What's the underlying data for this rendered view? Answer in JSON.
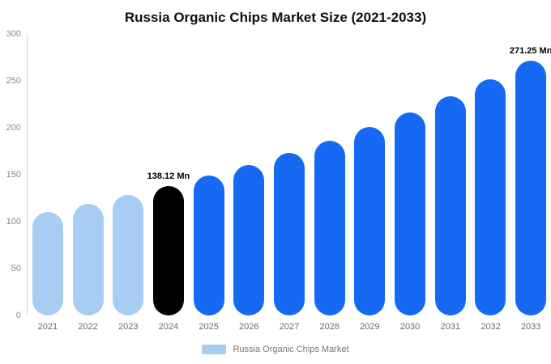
{
  "title": "Russia Organic Chips Market Size (2021-2033)",
  "legend": {
    "label": "Russia Organic Chips Market",
    "swatch_color": "#a8cdf3"
  },
  "colors": {
    "light_blue": "#a8cdf3",
    "blue": "#1669f2",
    "black": "#000000",
    "axis_line": "#d4d4d4",
    "axis_text": "#8a8a8a",
    "x_text": "#6b6b6b"
  },
  "chart_data": {
    "type": "bar",
    "title": "Russia Organic Chips Market Size (2021-2033)",
    "categories": [
      "2021",
      "2022",
      "2023",
      "2024",
      "2025",
      "2026",
      "2027",
      "2028",
      "2029",
      "2030",
      "2031",
      "2032",
      "2033"
    ],
    "values": [
      110.29,
      118.88,
      128.14,
      138.12,
      148.88,
      160.47,
      172.97,
      186.44,
      200.96,
      216.61,
      233.48,
      251.66,
      271.25
    ],
    "unit": "Mn",
    "bar_colors": [
      "#a8cdf3",
      "#a8cdf3",
      "#a8cdf3",
      "#000000",
      "#1669f2",
      "#1669f2",
      "#1669f2",
      "#1669f2",
      "#1669f2",
      "#1669f2",
      "#1669f2",
      "#1669f2",
      "#1669f2"
    ],
    "annotations": [
      {
        "index": 3,
        "text": "138.12 Mn"
      },
      {
        "index": 12,
        "text": "271.25 Mn"
      }
    ],
    "xlabel": "",
    "ylabel": "",
    "ylim": [
      0,
      300
    ],
    "yticks": [
      0,
      50,
      100,
      150,
      200,
      250,
      300
    ],
    "grid": false,
    "legend_position": "bottom"
  }
}
